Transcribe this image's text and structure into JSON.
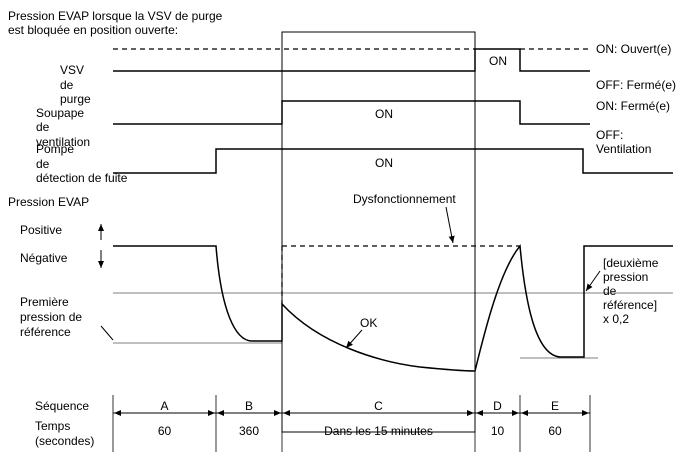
{
  "title": [
    "Pression EVAP lorsque la VSV de purge",
    "est bloquée en position ouverte:"
  ],
  "rows": {
    "vsv": [
      "VSV",
      "de",
      "purge"
    ],
    "soupape": [
      "Soupape",
      "de",
      "ventilation"
    ],
    "pompe": [
      "Pompe",
      "de",
      "détection de fuite"
    ],
    "evap": "Pression EVAP",
    "positive": "Positive",
    "negative": "Négative",
    "premiere": [
      "Première",
      "pression de",
      "référence"
    ]
  },
  "states": {
    "vsv_on": "ON: Ouvert(e)",
    "vsv_off": "OFF: Fermé(e)",
    "soupape_on": "ON: Fermé(e)",
    "soupape_off": [
      "OFF:",
      "Ventilation"
    ],
    "on": "ON"
  },
  "annotations": {
    "dysfonctionnement": "Dysfonctionnement",
    "ok": "OK",
    "deuxieme": [
      "[deuxième",
      "pression",
      "de",
      "référence]",
      "x 0,2"
    ]
  },
  "sequence": {
    "label": "Séquence",
    "time_label": [
      "Temps",
      "(secondes)"
    ],
    "steps": [
      {
        "id": "A",
        "time": "60"
      },
      {
        "id": "B",
        "time": "360"
      },
      {
        "id": "C",
        "time": "Dans les 15 minutes"
      },
      {
        "id": "D",
        "time": "10"
      },
      {
        "id": "E",
        "time": "60"
      }
    ]
  }
}
